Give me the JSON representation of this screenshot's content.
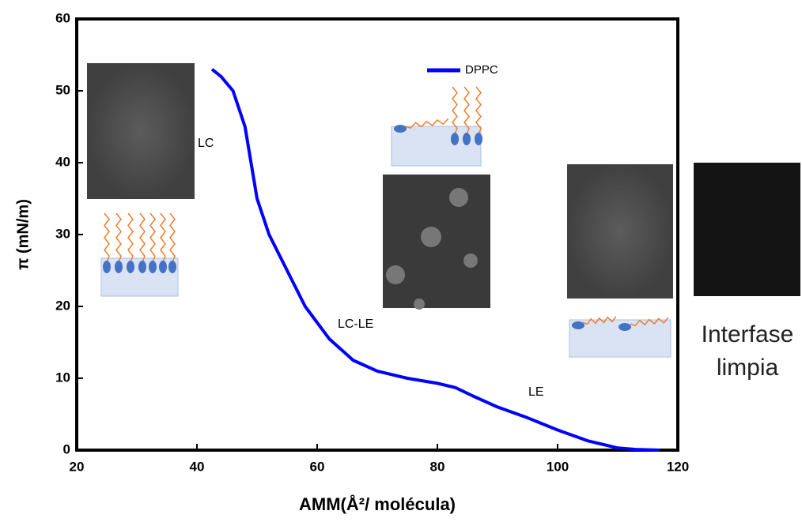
{
  "chart_data": {
    "type": "line",
    "x_label": "AMM(Å²/ molécula)",
    "y_label": "π (mN/m)",
    "xlim": [
      20,
      120
    ],
    "xticks": [
      20,
      40,
      60,
      80,
      100,
      120
    ],
    "ylim": [
      0,
      60
    ],
    "yticks": [
      0,
      10,
      20,
      30,
      40,
      50,
      60
    ],
    "legend": "top",
    "series": [
      {
        "name": "DPPC",
        "color": "#0000ff",
        "x": [
          42.5,
          44,
          46,
          48,
          49,
          50,
          52,
          55,
          58,
          62,
          66,
          70,
          75,
          80,
          83,
          86,
          90,
          95,
          100,
          105,
          110,
          113,
          117
        ],
        "values": [
          53,
          52,
          50,
          45,
          40,
          35,
          30,
          25,
          20,
          15.5,
          12.5,
          11,
          10,
          9.3,
          8.7,
          7.5,
          6,
          4.5,
          2.8,
          1.3,
          0.3,
          0.1,
          0
        ]
      }
    ],
    "annotations": [
      "LC",
      "LC-LE",
      "LE"
    ],
    "clean_interface_label": [
      "Interfase",
      "limpia"
    ]
  }
}
